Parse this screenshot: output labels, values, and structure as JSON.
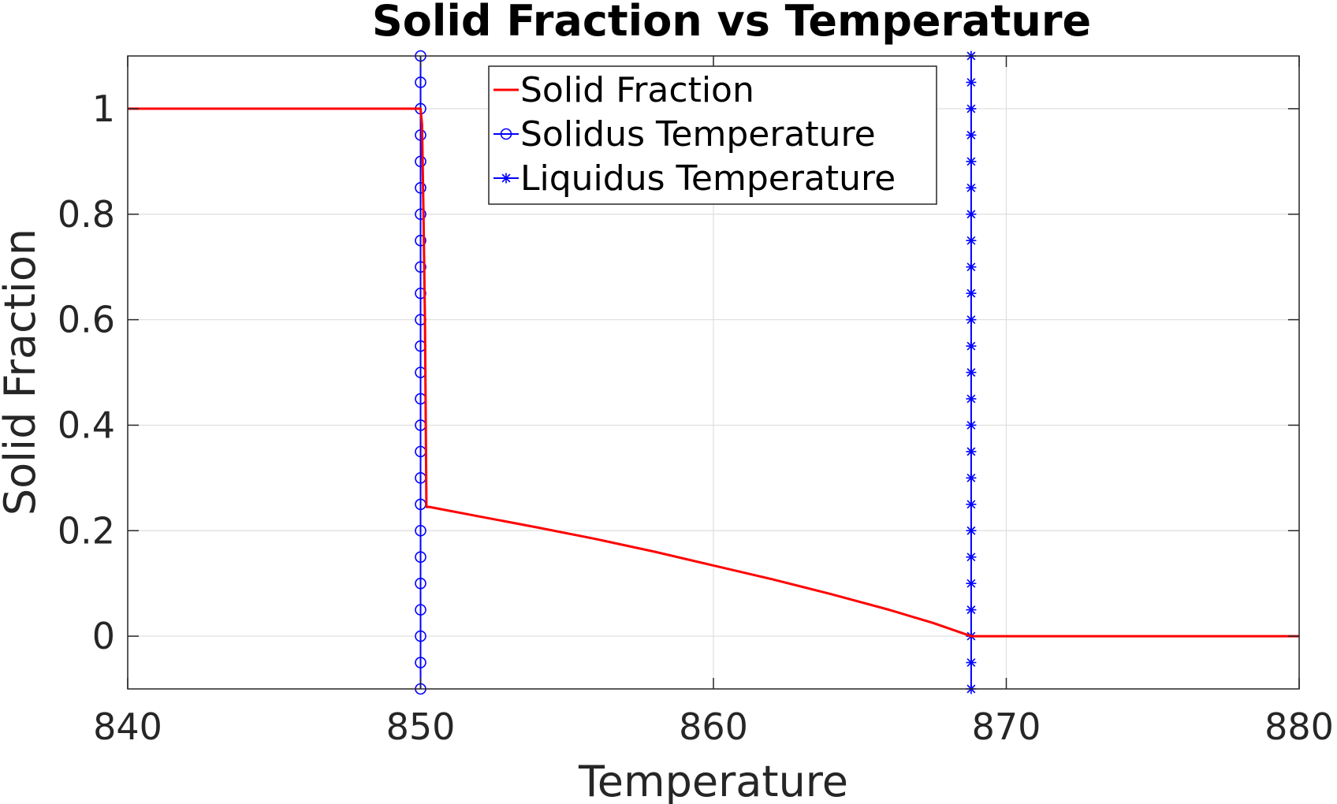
{
  "chart_data": {
    "type": "line",
    "title": "Solid Fraction vs Temperature",
    "xlabel": "Temperature",
    "ylabel": "Solid Fraction",
    "xlim": [
      840,
      880
    ],
    "ylim": [
      -0.1,
      1.1
    ],
    "xticks": [
      "840",
      "850",
      "860",
      "870",
      "880"
    ],
    "yticks": [
      "0",
      "0.2",
      "0.4",
      "0.6",
      "0.8",
      "1"
    ],
    "grid": true,
    "legend_position": "top-center",
    "series": [
      {
        "name": "Solid Fraction",
        "color": "#ff0000",
        "marker": "none",
        "x": [
          840,
          850,
          850.05,
          850.1,
          850.15,
          850.2,
          850.3,
          852,
          854,
          856,
          858,
          860,
          862,
          864,
          866,
          867.5,
          868.8,
          869,
          872,
          876,
          880
        ],
        "y": [
          1,
          1,
          0.97,
          0.8,
          0.6,
          0.245,
          0.245,
          0.227,
          0.206,
          0.184,
          0.16,
          0.134,
          0.108,
          0.08,
          0.05,
          0.025,
          0,
          0,
          0,
          0,
          0
        ]
      },
      {
        "name": "Solidus Temperature",
        "color": "#0000ff",
        "marker": "circle",
        "x": [
          850.0,
          850.0
        ],
        "y": [
          -0.1,
          1.1
        ],
        "marker_y": [
          -0.1,
          -0.05,
          0,
          0.05,
          0.1,
          0.15,
          0.2,
          0.25,
          0.3,
          0.35,
          0.4,
          0.45,
          0.5,
          0.55,
          0.6,
          0.65,
          0.7,
          0.75,
          0.8,
          0.85,
          0.9,
          0.95,
          1.0,
          1.05,
          1.1
        ]
      },
      {
        "name": "Liquidus Temperature",
        "color": "#0000ff",
        "marker": "asterisk",
        "x": [
          868.8,
          868.8
        ],
        "y": [
          -0.1,
          1.1
        ],
        "marker_y": [
          -0.1,
          -0.05,
          0,
          0.05,
          0.1,
          0.15,
          0.2,
          0.25,
          0.3,
          0.35,
          0.4,
          0.45,
          0.5,
          0.55,
          0.6,
          0.65,
          0.7,
          0.75,
          0.8,
          0.85,
          0.9,
          0.95,
          1.0,
          1.05,
          1.1
        ]
      }
    ]
  }
}
